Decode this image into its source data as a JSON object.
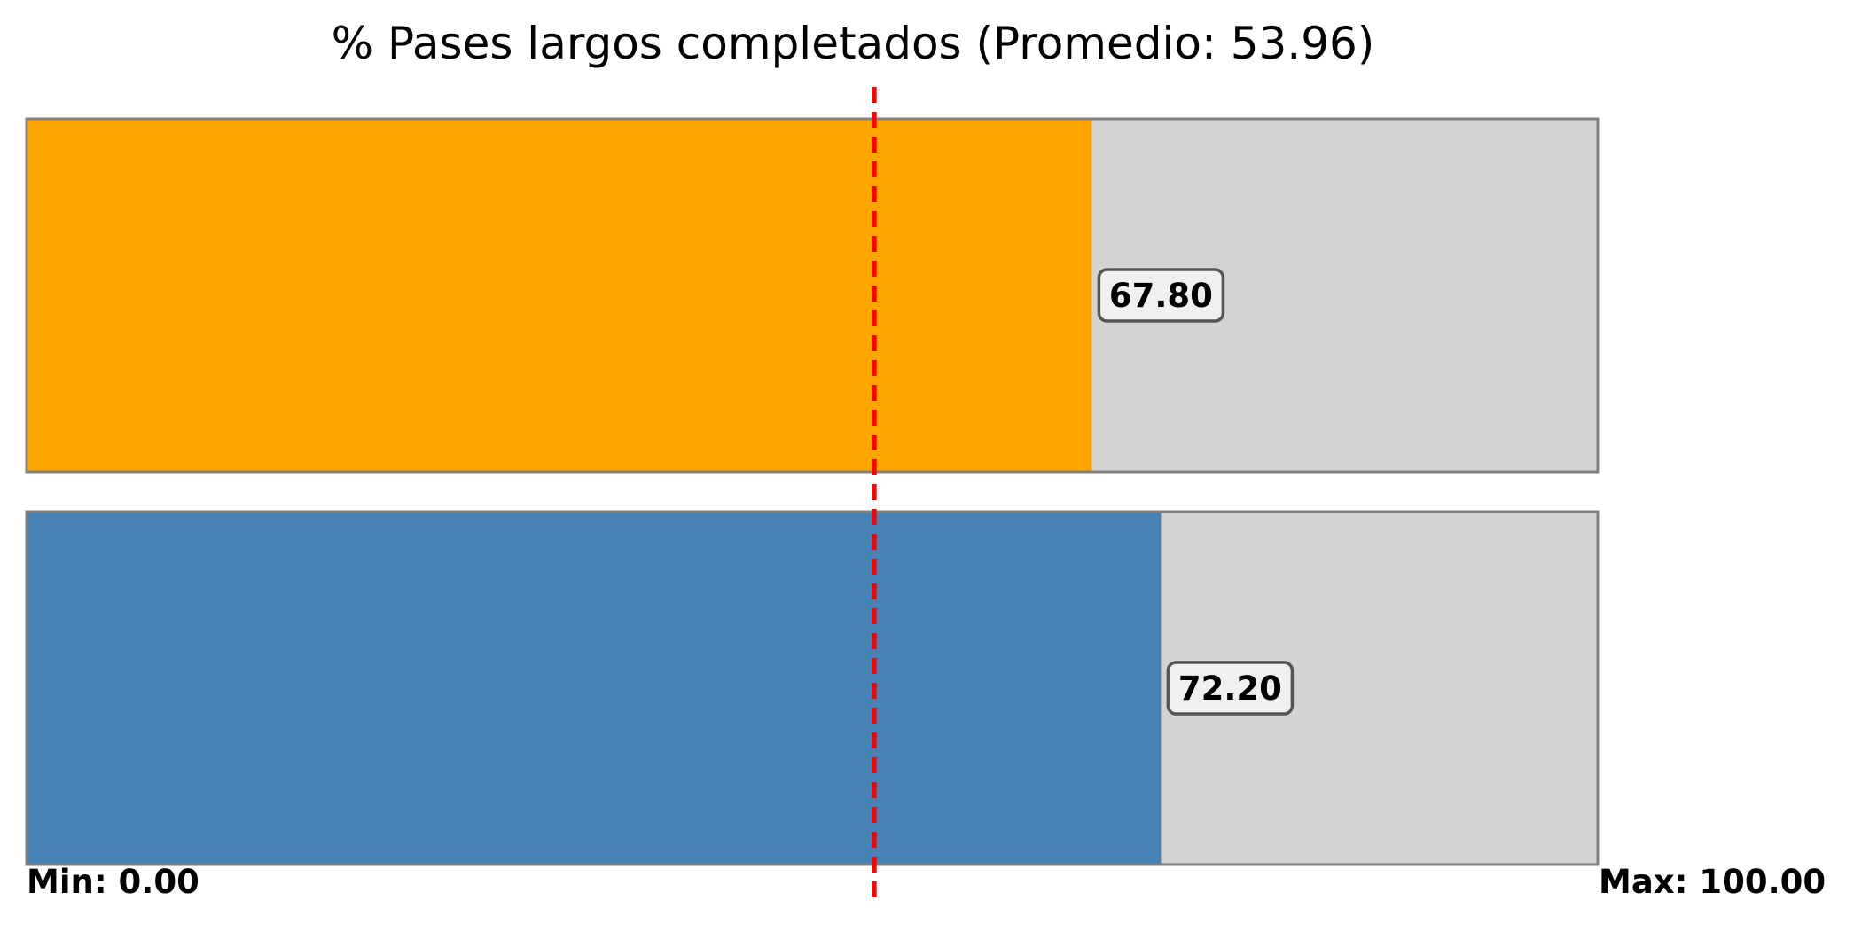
{
  "chart_data": {
    "type": "bar",
    "orientation": "horizontal",
    "title": "% Pases largos completados (Promedio: 53.96)",
    "xlim": [
      0,
      100
    ],
    "average": 53.96,
    "series": [
      {
        "value": 67.8,
        "label": "67.80",
        "color": "#FFA500"
      },
      {
        "value": 72.2,
        "label": "72.20",
        "color": "#4682B4"
      }
    ],
    "track_color": "#D3D3D3",
    "track_border_color": "#808080",
    "average_line_color": "#FF0000",
    "average_line_style": "dashed",
    "min_label": "Min: 0.00",
    "max_label": "Max: 100.00",
    "grid": false,
    "legend": "none"
  }
}
